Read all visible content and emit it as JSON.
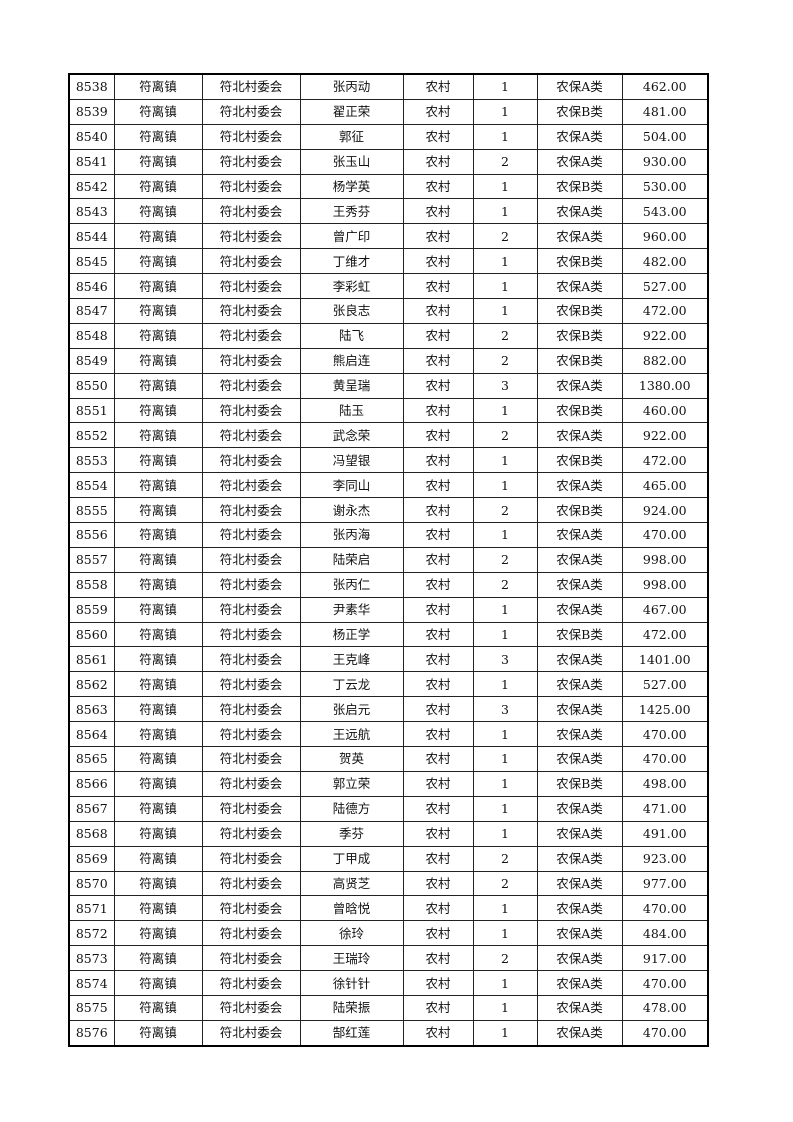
{
  "table": {
    "rows": [
      [
        "8538",
        "符离镇",
        "符北村委会",
        "张丙动",
        "农村",
        "1",
        "农保A类",
        "462.00"
      ],
      [
        "8539",
        "符离镇",
        "符北村委会",
        "翟正荣",
        "农村",
        "1",
        "农保B类",
        "481.00"
      ],
      [
        "8540",
        "符离镇",
        "符北村委会",
        "郭征",
        "农村",
        "1",
        "农保A类",
        "504.00"
      ],
      [
        "8541",
        "符离镇",
        "符北村委会",
        "张玉山",
        "农村",
        "2",
        "农保A类",
        "930.00"
      ],
      [
        "8542",
        "符离镇",
        "符北村委会",
        "杨学英",
        "农村",
        "1",
        "农保B类",
        "530.00"
      ],
      [
        "8543",
        "符离镇",
        "符北村委会",
        "王秀芬",
        "农村",
        "1",
        "农保A类",
        "543.00"
      ],
      [
        "8544",
        "符离镇",
        "符北村委会",
        "曾广印",
        "农村",
        "2",
        "农保A类",
        "960.00"
      ],
      [
        "8545",
        "符离镇",
        "符北村委会",
        "丁维才",
        "农村",
        "1",
        "农保B类",
        "482.00"
      ],
      [
        "8546",
        "符离镇",
        "符北村委会",
        "李彩虹",
        "农村",
        "1",
        "农保A类",
        "527.00"
      ],
      [
        "8547",
        "符离镇",
        "符北村委会",
        "张良志",
        "农村",
        "1",
        "农保B类",
        "472.00"
      ],
      [
        "8548",
        "符离镇",
        "符北村委会",
        "陆飞",
        "农村",
        "2",
        "农保B类",
        "922.00"
      ],
      [
        "8549",
        "符离镇",
        "符北村委会",
        "熊启连",
        "农村",
        "2",
        "农保B类",
        "882.00"
      ],
      [
        "8550",
        "符离镇",
        "符北村委会",
        "黄呈瑞",
        "农村",
        "3",
        "农保A类",
        "1380.00"
      ],
      [
        "8551",
        "符离镇",
        "符北村委会",
        "陆玉",
        "农村",
        "1",
        "农保B类",
        "460.00"
      ],
      [
        "8552",
        "符离镇",
        "符北村委会",
        "武念荣",
        "农村",
        "2",
        "农保A类",
        "922.00"
      ],
      [
        "8553",
        "符离镇",
        "符北村委会",
        "冯望银",
        "农村",
        "1",
        "农保B类",
        "472.00"
      ],
      [
        "8554",
        "符离镇",
        "符北村委会",
        "李同山",
        "农村",
        "1",
        "农保A类",
        "465.00"
      ],
      [
        "8555",
        "符离镇",
        "符北村委会",
        "谢永杰",
        "农村",
        "2",
        "农保B类",
        "924.00"
      ],
      [
        "8556",
        "符离镇",
        "符北村委会",
        "张丙海",
        "农村",
        "1",
        "农保A类",
        "470.00"
      ],
      [
        "8557",
        "符离镇",
        "符北村委会",
        "陆荣启",
        "农村",
        "2",
        "农保A类",
        "998.00"
      ],
      [
        "8558",
        "符离镇",
        "符北村委会",
        "张丙仁",
        "农村",
        "2",
        "农保A类",
        "998.00"
      ],
      [
        "8559",
        "符离镇",
        "符北村委会",
        "尹素华",
        "农村",
        "1",
        "农保A类",
        "467.00"
      ],
      [
        "8560",
        "符离镇",
        "符北村委会",
        "杨正学",
        "农村",
        "1",
        "农保B类",
        "472.00"
      ],
      [
        "8561",
        "符离镇",
        "符北村委会",
        "王克峰",
        "农村",
        "3",
        "农保A类",
        "1401.00"
      ],
      [
        "8562",
        "符离镇",
        "符北村委会",
        "丁云龙",
        "农村",
        "1",
        "农保A类",
        "527.00"
      ],
      [
        "8563",
        "符离镇",
        "符北村委会",
        "张启元",
        "农村",
        "3",
        "农保A类",
        "1425.00"
      ],
      [
        "8564",
        "符离镇",
        "符北村委会",
        "王远航",
        "农村",
        "1",
        "农保A类",
        "470.00"
      ],
      [
        "8565",
        "符离镇",
        "符北村委会",
        "贺英",
        "农村",
        "1",
        "农保A类",
        "470.00"
      ],
      [
        "8566",
        "符离镇",
        "符北村委会",
        "郭立荣",
        "农村",
        "1",
        "农保B类",
        "498.00"
      ],
      [
        "8567",
        "符离镇",
        "符北村委会",
        "陆德方",
        "农村",
        "1",
        "农保A类",
        "471.00"
      ],
      [
        "8568",
        "符离镇",
        "符北村委会",
        "季芬",
        "农村",
        "1",
        "农保A类",
        "491.00"
      ],
      [
        "8569",
        "符离镇",
        "符北村委会",
        "丁甲成",
        "农村",
        "2",
        "农保A类",
        "923.00"
      ],
      [
        "8570",
        "符离镇",
        "符北村委会",
        "高贤芝",
        "农村",
        "2",
        "农保A类",
        "977.00"
      ],
      [
        "8571",
        "符离镇",
        "符北村委会",
        "曾晗悦",
        "农村",
        "1",
        "农保A类",
        "470.00"
      ],
      [
        "8572",
        "符离镇",
        "符北村委会",
        "徐玲",
        "农村",
        "1",
        "农保A类",
        "484.00"
      ],
      [
        "8573",
        "符离镇",
        "符北村委会",
        "王瑞玲",
        "农村",
        "2",
        "农保A类",
        "917.00"
      ],
      [
        "8574",
        "符离镇",
        "符北村委会",
        "徐针针",
        "农村",
        "1",
        "农保A类",
        "470.00"
      ],
      [
        "8575",
        "符离镇",
        "符北村委会",
        "陆荣振",
        "农村",
        "1",
        "农保A类",
        "478.00"
      ],
      [
        "8576",
        "符离镇",
        "符北村委会",
        "郜红莲",
        "农村",
        "1",
        "农保A类",
        "470.00"
      ]
    ]
  }
}
